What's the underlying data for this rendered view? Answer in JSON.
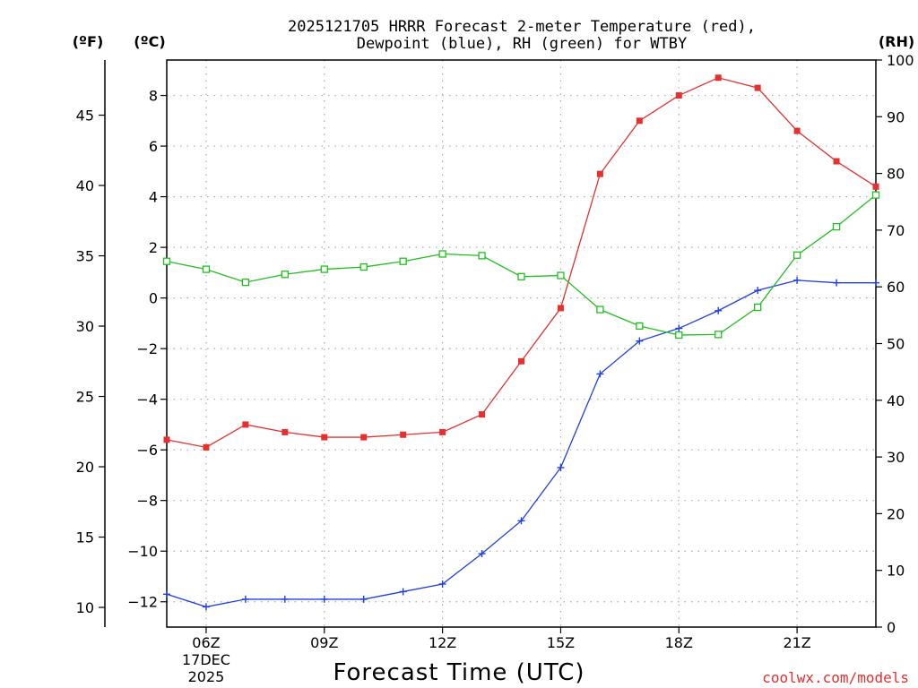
{
  "chart_data": {
    "type": "line",
    "title_line1": "2025121705 HRRR Forecast 2-meter Temperature (red),",
    "title_line2": "Dewpoint (blue), RH (green) for WTBY",
    "xlabel": "Forecast Time (UTC)",
    "credit": "coolwx.com/models",
    "units": {
      "fahrenheit": "(ºF)",
      "celsius": "(ºC)",
      "rh": "(RH)"
    },
    "x": [
      5,
      6,
      7,
      8,
      9,
      10,
      11,
      12,
      13,
      14,
      15,
      16,
      17,
      18,
      19,
      20,
      21,
      22,
      23
    ],
    "xlim": [
      5,
      23
    ],
    "x_ticks": [
      {
        "x": 6,
        "label": "06Z"
      },
      {
        "x": 9,
        "label": "09Z"
      },
      {
        "x": 12,
        "label": "12Z"
      },
      {
        "x": 15,
        "label": "15Z"
      },
      {
        "x": 18,
        "label": "18Z"
      },
      {
        "x": 21,
        "label": "21Z"
      }
    ],
    "date_label": {
      "x": 6,
      "line1": "17DEC",
      "line2": "2025"
    },
    "celsius_axis": {
      "ylim": [
        -13.0,
        9.4
      ],
      "ticks": [
        8,
        6,
        4,
        2,
        0,
        -2,
        -4,
        -6,
        -8,
        -10,
        -12
      ],
      "labels": [
        "8",
        "6",
        "4",
        "2",
        "0",
        "−2",
        "−4",
        "−6",
        "−8",
        "−10",
        "−12"
      ]
    },
    "fahrenheit_axis": {
      "ticks": [
        45,
        40,
        35,
        30,
        25,
        20,
        15,
        10
      ],
      "labels": [
        "45",
        "40",
        "35",
        "30",
        "25",
        "20",
        "15",
        "10"
      ]
    },
    "rh_axis": {
      "ylim": [
        0,
        100
      ],
      "ticks": [
        100,
        90,
        80,
        70,
        60,
        50,
        40,
        30,
        20,
        10,
        0
      ],
      "labels": [
        "100",
        "90",
        "80",
        "70",
        "60",
        "50",
        "40",
        "30",
        "20",
        "10",
        "0"
      ]
    },
    "grid": true,
    "series": [
      {
        "name": "Temperature",
        "axis": "celsius",
        "color": "#e53030",
        "marker": "filled-square",
        "values": [
          -5.6,
          -5.9,
          -5.0,
          -5.3,
          -5.5,
          -5.5,
          -5.4,
          -5.3,
          -4.6,
          -2.5,
          -0.4,
          4.9,
          7.0,
          8.0,
          8.7,
          8.3,
          6.6,
          5.4,
          4.4
        ]
      },
      {
        "name": "Dewpoint",
        "axis": "celsius",
        "color": "#2040e0",
        "marker": "plus",
        "values": [
          -11.7,
          -12.2,
          -11.9,
          -11.9,
          -11.9,
          -11.9,
          -11.6,
          -11.3,
          -10.1,
          -8.8,
          -6.7,
          -3.0,
          -1.7,
          -1.2,
          -0.5,
          0.3,
          0.7,
          0.6,
          0.6
        ]
      },
      {
        "name": "RH",
        "axis": "rh",
        "color": "#20c020",
        "marker": "open-square",
        "values": [
          64.5,
          63.1,
          60.8,
          62.2,
          63.1,
          63.5,
          64.5,
          65.8,
          65.5,
          61.8,
          62.0,
          56.0,
          53.1,
          51.5,
          51.6,
          56.4,
          65.6,
          70.6,
          76.2
        ]
      }
    ]
  }
}
